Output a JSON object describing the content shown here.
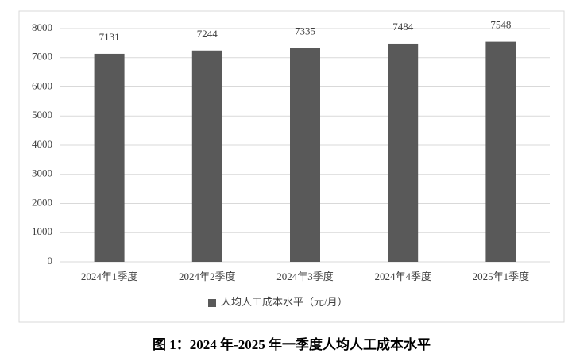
{
  "chart_data": {
    "type": "bar",
    "title": "图 1：2024 年-2025 年一季度人均人工成本水平",
    "categories": [
      "2024年1季度",
      "2024年2季度",
      "2024年3季度",
      "2024年4季度",
      "2025年1季度"
    ],
    "series": [
      {
        "name": "人均人工成本水平（元/月）",
        "color": "#595959",
        "values": [
          7131,
          7244,
          7335,
          7484,
          7548
        ]
      }
    ],
    "ylim": [
      0,
      8000
    ],
    "yticks": [
      0,
      1000,
      2000,
      3000,
      4000,
      5000,
      6000,
      7000,
      8000
    ],
    "grid": true,
    "legend": "bottom"
  }
}
